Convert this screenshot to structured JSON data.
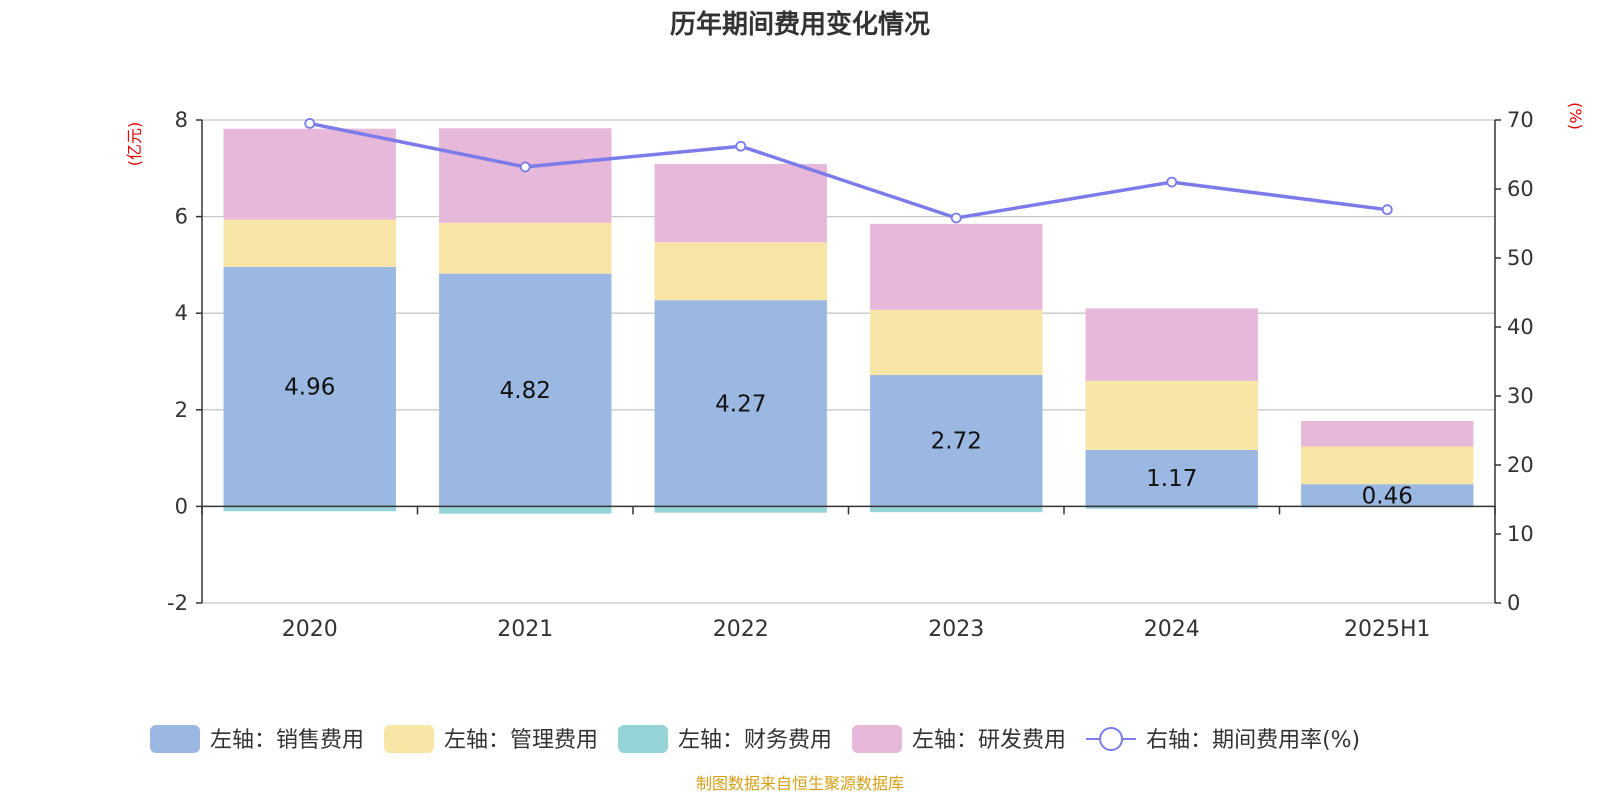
{
  "title": "历年期间费用变化情况",
  "source": "制图数据来自恒生聚源数据库",
  "chart_data": {
    "type": "bar",
    "stacked": true,
    "title": "历年期间费用变化情况",
    "categories": [
      "2020",
      "2021",
      "2022",
      "2023",
      "2024",
      "2025H1"
    ],
    "left_axis": {
      "unit": "(亿元)",
      "ylim": [
        -2,
        8
      ],
      "ticks": [
        -2,
        0,
        2,
        4,
        6,
        8
      ]
    },
    "right_axis": {
      "unit": "(%)",
      "ylim": [
        0,
        70
      ],
      "ticks": [
        0,
        10,
        20,
        30,
        40,
        50,
        60,
        70
      ]
    },
    "grid": true,
    "legend_position": "bottom",
    "series": [
      {
        "name": "左轴：销售费用",
        "axis": "left",
        "type": "bar",
        "color": "#9bb8e2",
        "values": [
          4.96,
          4.82,
          4.27,
          2.72,
          1.17,
          0.46
        ],
        "show_labels": true
      },
      {
        "name": "左轴：管理费用",
        "axis": "left",
        "type": "bar",
        "color": "#f8e6a6",
        "values": [
          0.98,
          1.05,
          1.2,
          1.35,
          1.43,
          0.78
        ]
      },
      {
        "name": "左轴：财务费用",
        "axis": "left",
        "type": "bar",
        "color": "#95d3d6",
        "values": [
          -0.1,
          -0.15,
          -0.13,
          -0.12,
          -0.05,
          -0.02
        ]
      },
      {
        "name": "左轴：研发费用",
        "axis": "left",
        "type": "bar",
        "color": "#e7b8d9",
        "values": [
          1.88,
          1.96,
          1.62,
          1.78,
          1.5,
          0.53
        ]
      },
      {
        "name": "右轴：期间费用率(%)",
        "axis": "right",
        "type": "line",
        "color": "#7b7bea",
        "values": [
          69.5,
          63.2,
          66.2,
          55.8,
          61.0,
          57.0
        ]
      }
    ]
  }
}
